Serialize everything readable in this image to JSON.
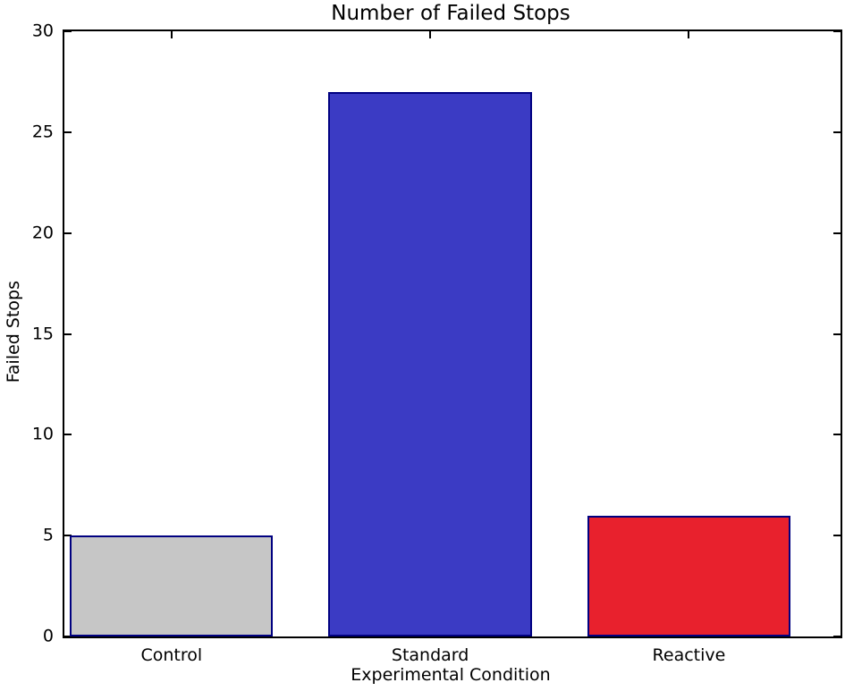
{
  "chart_data": {
    "type": "bar",
    "title": "Number of Failed Stops",
    "xlabel": "Experimental Condition",
    "ylabel": "Failed Stops",
    "categories": [
      "Control",
      "Standard",
      "Reactive"
    ],
    "values": [
      5,
      27,
      6
    ],
    "ylim": [
      0,
      30
    ],
    "yticks": [
      0,
      5,
      10,
      15,
      20,
      25,
      30
    ],
    "bar_colors": [
      "#c6c6c6",
      "#3b3bc4",
      "#e8212d"
    ],
    "bar_edge_color": "#000080",
    "axis_color": "#000000",
    "background": "#ffffff",
    "grid": false,
    "legend": "none"
  }
}
